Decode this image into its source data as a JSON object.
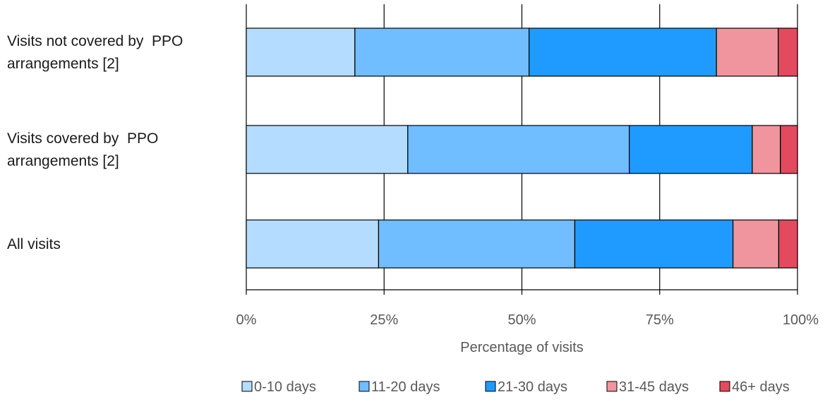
{
  "chart_data": {
    "type": "bar",
    "orientation": "horizontal",
    "stacked": true,
    "categories": [
      [
        "Visits not covered by  PPO",
        "arrangements [2]"
      ],
      [
        "Visits covered by  PPO",
        "arrangements [2]"
      ],
      [
        "All visits"
      ]
    ],
    "series": [
      {
        "name": "0-10 days",
        "color": "#b3dcff",
        "values": [
          19.7,
          29.3,
          24.0
        ]
      },
      {
        "name": "11-20 days",
        "color": "#70bdff",
        "values": [
          31.6,
          40.2,
          35.6
        ]
      },
      {
        "name": "21-30 days",
        "color": "#1f9bff",
        "values": [
          34.0,
          22.3,
          28.7
        ]
      },
      {
        "name": "31-45 days",
        "color": "#f0959d",
        "values": [
          11.2,
          5.1,
          8.3
        ]
      },
      {
        "name": "46+ days",
        "color": "#e34a5e",
        "values": [
          3.5,
          3.1,
          3.4
        ]
      }
    ],
    "xlabel": "Percentage of visits",
    "xlim": [
      0,
      100
    ],
    "xticks": [
      "0%",
      "25%",
      "50%",
      "75%",
      "100%"
    ],
    "grid": "vertical",
    "legend": "bottom"
  }
}
